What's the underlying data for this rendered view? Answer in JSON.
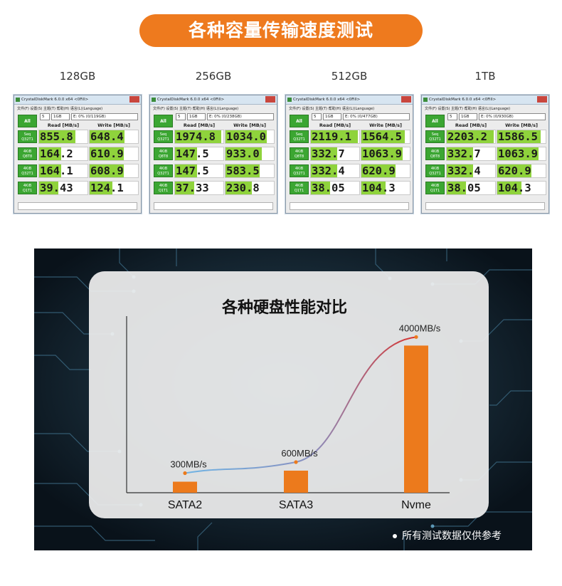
{
  "header": {
    "title": "各种容量传输速度测试"
  },
  "benchmarks": [
    {
      "capacity": "128GB",
      "window_title": "CrystalDiskMark 6.0.0 x64 <0Fill>",
      "menu": "文件(F)  设置(S)  主题(T)  帮助(H)  语言(L)(Language)",
      "all_label": "All",
      "count": "5",
      "size": "1GB",
      "drive": "E: 0% (0/119GB)",
      "read_header": "Read [MB/s]",
      "write_header": "Write [MB/s]",
      "rows": [
        {
          "label": "Seq Q32T1",
          "read": "855.8",
          "write": "648.4",
          "read_fill": 0.75,
          "write_fill": 0.72
        },
        {
          "label": "4KiB Q8T8",
          "read": "164.2",
          "write": "610.9",
          "read_fill": 0.45,
          "write_fill": 0.7
        },
        {
          "label": "4KiB Q32T1",
          "read": "164.1",
          "write": "608.9",
          "read_fill": 0.45,
          "write_fill": 0.7
        },
        {
          "label": "4KiB Q1T1",
          "read": "39.43",
          "write": "124.1",
          "read_fill": 0.4,
          "write_fill": 0.47
        }
      ]
    },
    {
      "capacity": "256GB",
      "window_title": "CrystalDiskMark 6.0.0 x64 <0Fill>",
      "menu": "文件(F)  设置(S)  主题(T)  帮助(H)  语言(L)(Language)",
      "all_label": "All",
      "count": "5",
      "size": "1GB",
      "drive": "E: 0% (0/238GB)",
      "read_header": "Read [MB/s]",
      "write_header": "Write [MB/s]",
      "rows": [
        {
          "label": "Seq Q32T1",
          "read": "1974.8",
          "write": "1034.0",
          "read_fill": 0.95,
          "write_fill": 0.85
        },
        {
          "label": "4KiB Q8T8",
          "read": "147.5",
          "write": "933.0",
          "read_fill": 0.45,
          "write_fill": 0.75
        },
        {
          "label": "4KiB Q32T1",
          "read": "147.5",
          "write": "583.5",
          "read_fill": 0.45,
          "write_fill": 0.7
        },
        {
          "label": "4KiB Q1T1",
          "read": "37.33",
          "write": "230.8",
          "read_fill": 0.4,
          "write_fill": 0.55
        }
      ]
    },
    {
      "capacity": "512GB",
      "window_title": "CrystalDiskMark 6.0.0 x64 <0Fill>",
      "menu": "文件(F)  设置(S)  主题(T)  帮助(H)  语言(L)(Language)",
      "all_label": "All",
      "count": "5",
      "size": "1GB",
      "drive": "E: 0% (0/477GB)",
      "read_header": "Read [MB/s]",
      "write_header": "Write [MB/s]",
      "rows": [
        {
          "label": "Seq Q32T1",
          "read": "2119.1",
          "write": "1564.5",
          "read_fill": 0.97,
          "write_fill": 0.9
        },
        {
          "label": "4KiB Q8T8",
          "read": "332.7",
          "write": "1063.9",
          "read_fill": 0.55,
          "write_fill": 0.85
        },
        {
          "label": "4KiB Q32T1",
          "read": "332.4",
          "write": "620.9",
          "read_fill": 0.55,
          "write_fill": 0.7
        },
        {
          "label": "4KiB Q1T1",
          "read": "38.05",
          "write": "104.3",
          "read_fill": 0.4,
          "write_fill": 0.5
        }
      ]
    },
    {
      "capacity": "1TB",
      "window_title": "CrystalDiskMark 6.0.0 x64 <0Fill>",
      "menu": "文件(F)  设置(S)  主题(T)  帮助(H)  语言(L)(Language)",
      "all_label": "All",
      "count": "5",
      "size": "1GB",
      "drive": "E: 0% (0/930GB)",
      "read_header": "Read [MB/s]",
      "write_header": "Write [MB/s]",
      "rows": [
        {
          "label": "Seq Q32T1",
          "read": "2203.2",
          "write": "1586.5",
          "read_fill": 0.97,
          "write_fill": 0.9
        },
        {
          "label": "4KiB Q8T8",
          "read": "332.7",
          "write": "1063.9",
          "read_fill": 0.55,
          "write_fill": 0.85
        },
        {
          "label": "4KiB Q32T1",
          "read": "332.4",
          "write": "620.9",
          "read_fill": 0.55,
          "write_fill": 0.7
        },
        {
          "label": "4KiB Q1T1",
          "read": "38.05",
          "write": "104.3",
          "read_fill": 0.4,
          "write_fill": 0.5
        }
      ]
    }
  ],
  "chart_data": {
    "type": "bar",
    "title": "各种硬盘性能对比",
    "categories": [
      "SATA2",
      "SATA3",
      "Nvme"
    ],
    "values": [
      300,
      600,
      4000
    ],
    "value_labels": [
      "300MB/s",
      "600MB/s",
      "4000MB/s"
    ],
    "unit": "MB/s",
    "xlabel": "",
    "ylabel": "",
    "ylim": [
      0,
      4800
    ],
    "grid": false,
    "trend_line": true,
    "colors": {
      "bar": "#ec7a1c",
      "line_start": "#6fb4e4",
      "line_end": "#d8322e"
    }
  },
  "footnote": "所有测试数据仅供参考",
  "colors": {
    "accent": "#ee7a1e",
    "benchmark_green": "#3ba632",
    "bar_fill_green": "#8fd33c"
  }
}
